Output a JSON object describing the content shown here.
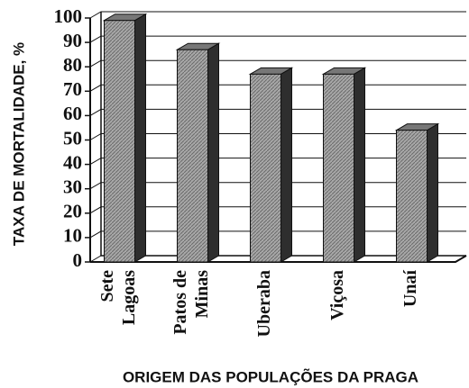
{
  "chart_data": {
    "type": "bar3d",
    "categories": [
      [
        "Sete",
        "Lagoas"
      ],
      [
        "Patos de",
        "Minas"
      ],
      [
        "Uberaba"
      ],
      [
        "Viçosa"
      ],
      [
        "Unaí"
      ]
    ],
    "values": [
      99,
      87,
      77,
      77,
      54
    ],
    "color": "#9a9a9a",
    "ylabel": "TAXA DE MORTALIDADE, %",
    "xlabel": "ORIGEM DAS POPULAÇÕES DA PRAGA",
    "ylim": [
      0,
      100
    ],
    "yticks": [
      0,
      10,
      20,
      30,
      40,
      50,
      60,
      70,
      80,
      90,
      100
    ],
    "grid": true
  }
}
